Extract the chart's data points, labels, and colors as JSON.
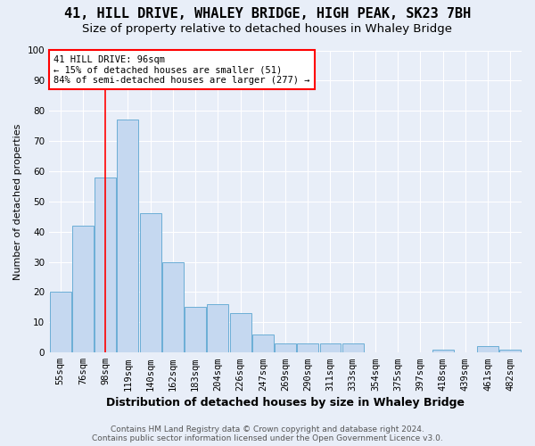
{
  "title1": "41, HILL DRIVE, WHALEY BRIDGE, HIGH PEAK, SK23 7BH",
  "title2": "Size of property relative to detached houses in Whaley Bridge",
  "xlabel": "Distribution of detached houses by size in Whaley Bridge",
  "ylabel": "Number of detached properties",
  "categories": [
    "55sqm",
    "76sqm",
    "98sqm",
    "119sqm",
    "140sqm",
    "162sqm",
    "183sqm",
    "204sqm",
    "226sqm",
    "247sqm",
    "269sqm",
    "290sqm",
    "311sqm",
    "333sqm",
    "354sqm",
    "375sqm",
    "397sqm",
    "418sqm",
    "439sqm",
    "461sqm",
    "482sqm"
  ],
  "values": [
    20,
    42,
    58,
    77,
    46,
    30,
    15,
    16,
    13,
    6,
    3,
    3,
    3,
    3,
    0,
    0,
    0,
    1,
    0,
    2,
    1
  ],
  "bar_color": "#c5d8f0",
  "bar_edge_color": "#6baed6",
  "red_line_index": 2,
  "annotation_text": "41 HILL DRIVE: 96sqm\n← 15% of detached houses are smaller (51)\n84% of semi-detached houses are larger (277) →",
  "footer_text": "Contains HM Land Registry data © Crown copyright and database right 2024.\nContains public sector information licensed under the Open Government Licence v3.0.",
  "ylim": [
    0,
    100
  ],
  "background_color": "#e8eef8",
  "grid_color": "#ffffff",
  "title1_fontsize": 11,
  "title2_fontsize": 9.5,
  "xlabel_fontsize": 9,
  "ylabel_fontsize": 8,
  "tick_fontsize": 7.5,
  "footer_fontsize": 6.5
}
